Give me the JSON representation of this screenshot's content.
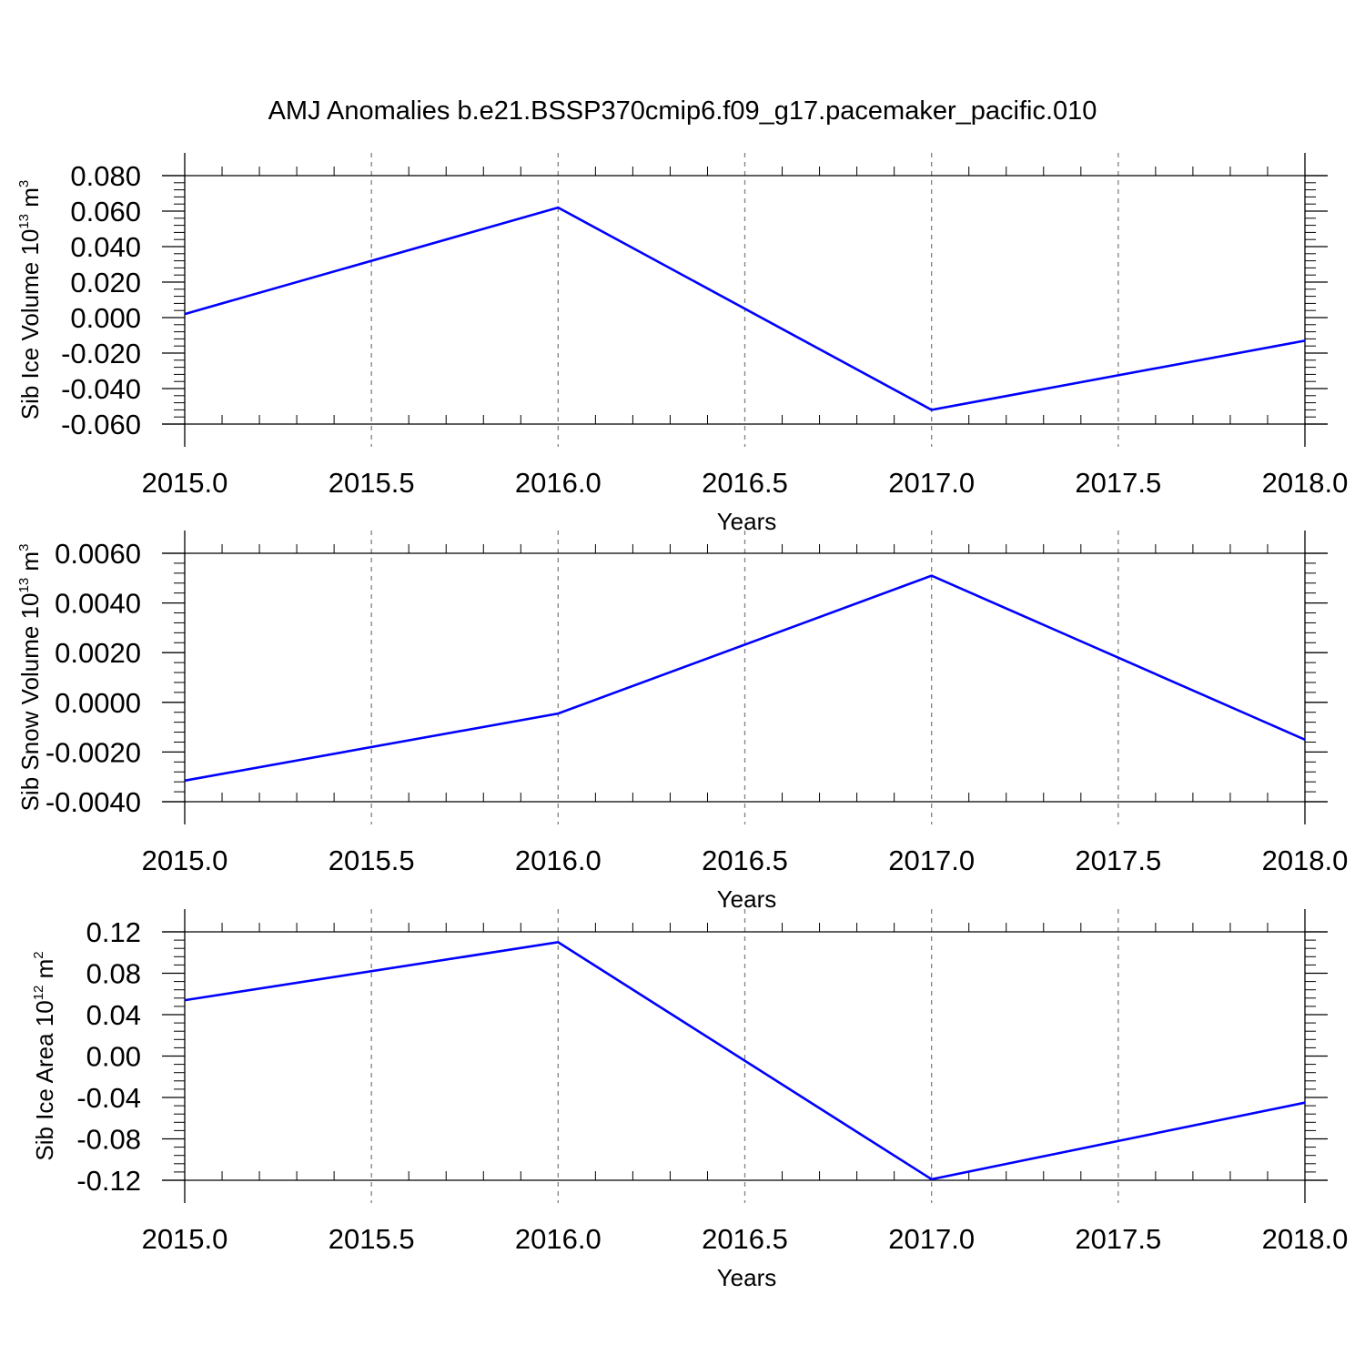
{
  "figure": {
    "title": "AMJ Anomalies b.e21.BSSP370cmip6.f09_g17.pacemaker_pacific.010"
  },
  "colors": {
    "series": "#0000ff",
    "axis": "#000000",
    "grid": "#808080"
  },
  "chart_data": [
    {
      "type": "line",
      "title": "",
      "xlabel": "Years",
      "ylabel": {
        "text": "Sib Ice Volume 10",
        "exp": "13",
        "unit": " m",
        "unit_exp": "3"
      },
      "xlim": [
        2015.0,
        2018.0
      ],
      "ylim": [
        -0.06,
        0.08
      ],
      "x_ticks": [
        "2015.0",
        "2015.5",
        "2016.0",
        "2016.5",
        "2017.0",
        "2017.5",
        "2018.0"
      ],
      "y_ticks": [
        "0.080",
        "0.060",
        "0.040",
        "0.020",
        "0.000",
        "-0.020",
        "-0.040",
        "-0.060"
      ],
      "grid": "vertical dashed at major x ticks",
      "x": [
        2015,
        2016,
        2017,
        2018
      ],
      "series": [
        {
          "values": [
            0.002,
            0.062,
            -0.052,
            -0.013
          ]
        }
      ]
    },
    {
      "type": "line",
      "title": "",
      "xlabel": "Years",
      "ylabel": {
        "text": "Sib Snow Volume 10",
        "exp": "13",
        "unit": " m",
        "unit_exp": "3"
      },
      "xlim": [
        2015.0,
        2018.0
      ],
      "ylim": [
        -0.004,
        0.006
      ],
      "x_ticks": [
        "2015.0",
        "2015.5",
        "2016.0",
        "2016.5",
        "2017.0",
        "2017.5",
        "2018.0"
      ],
      "y_ticks": [
        "0.0060",
        "0.0040",
        "0.0020",
        "0.0000",
        "-0.0020",
        "-0.0040"
      ],
      "grid": "vertical dashed at major x ticks",
      "x": [
        2015,
        2016,
        2017,
        2018
      ],
      "series": [
        {
          "values": [
            -0.00315,
            -0.00045,
            0.0051,
            -0.0015
          ]
        }
      ]
    },
    {
      "type": "line",
      "title": "",
      "xlabel": "Years",
      "ylabel": {
        "text": "Sib Ice Area 10",
        "exp": "12",
        "unit": " m",
        "unit_exp": "2"
      },
      "xlim": [
        2015.0,
        2018.0
      ],
      "ylim": [
        -0.12,
        0.12
      ],
      "x_ticks": [
        "2015.0",
        "2015.5",
        "2016.0",
        "2016.5",
        "2017.0",
        "2017.5",
        "2018.0"
      ],
      "y_ticks": [
        "0.12",
        "0.08",
        "0.04",
        "0.00",
        "-0.04",
        "-0.08",
        "-0.12"
      ],
      "grid": "vertical dashed at major x ticks",
      "x": [
        2015,
        2016,
        2017,
        2018
      ],
      "series": [
        {
          "values": [
            0.054,
            0.11,
            -0.119,
            -0.045
          ]
        }
      ]
    }
  ]
}
